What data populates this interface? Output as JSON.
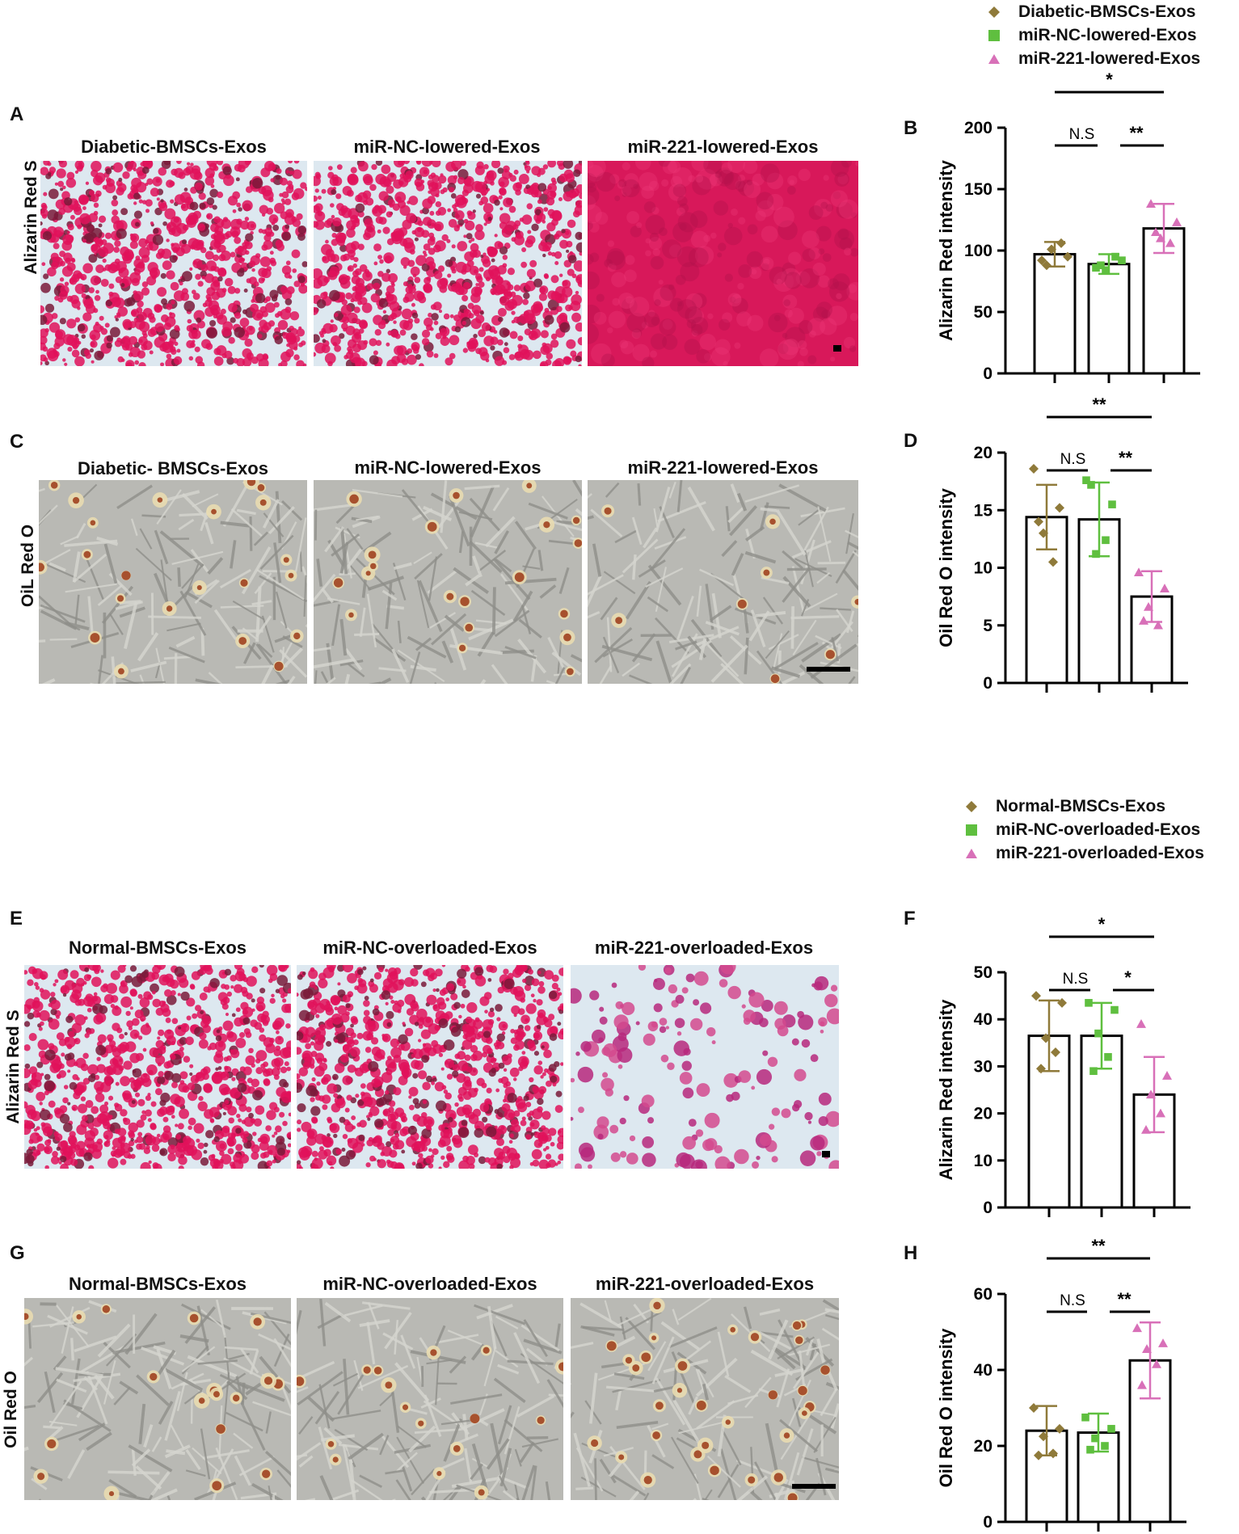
{
  "colors": {
    "diabetic": "#8f7a3a",
    "nc": "#5fbf3f",
    "mir221": "#d870b8",
    "alizarin": "#e0125a",
    "oil_bg": "#b9b9b4"
  },
  "legend_top": [
    {
      "label": "Diabetic-BMSCs-Exos",
      "marker": "diamond",
      "color": "#8f7a3a"
    },
    {
      "label": "miR-NC-lowered-Exos",
      "marker": "square",
      "color": "#5fbf3f"
    },
    {
      "label": "miR-221-lowered-Exos",
      "marker": "triangle",
      "color": "#d870b8"
    }
  ],
  "legend_bottom": [
    {
      "label": "Normal-BMSCs-Exos",
      "marker": "diamond",
      "color": "#8f7a3a"
    },
    {
      "label": "miR-NC-overloaded-Exos",
      "marker": "square",
      "color": "#5fbf3f"
    },
    {
      "label": "miR-221-overloaded-Exos",
      "marker": "triangle",
      "color": "#d870b8"
    }
  ],
  "panels": {
    "A": {
      "letter": "A",
      "row_label": "Alizarin Red S",
      "titles": [
        "Diabetic-BMSCs-Exos",
        "miR-NC-lowered-Exos",
        "miR-221-lowered-Exos"
      ]
    },
    "C": {
      "letter": "C",
      "row_label": "OiL Red O",
      "titles": [
        "Diabetic- BMSCs-Exos",
        "miR-NC-lowered-Exos",
        "miR-221-lowered-Exos"
      ]
    },
    "E": {
      "letter": "E",
      "row_label": "Alizarin Red S",
      "titles": [
        "Normal-BMSCs-Exos",
        "miR-NC-overloaded-Exos",
        "miR-221-overloaded-Exos"
      ]
    },
    "G": {
      "letter": "G",
      "row_label": "Oil Red O",
      "titles": [
        "Normal-BMSCs-Exos",
        "miR-NC-overloaded-Exos",
        "miR-221-overloaded-Exos"
      ]
    }
  },
  "chart_data": [
    {
      "id": "B",
      "letter": "B",
      "type": "bar",
      "ylabel": "Alizarin Red intensity",
      "yticks": [
        "0",
        "50",
        "100",
        "150",
        "200"
      ],
      "ylim": [
        0,
        200
      ],
      "values": [
        97,
        89,
        118
      ],
      "errors": [
        10,
        8,
        20
      ],
      "points": [
        [
          92,
          95,
          101,
          106,
          88
        ],
        [
          86,
          92,
          84,
          95,
          88
        ],
        [
          138,
          123,
          110,
          106,
          115
        ]
      ],
      "markers": [
        "diamond",
        "square",
        "triangle"
      ],
      "sig": [
        {
          "from": 0,
          "to": 1,
          "label": "N.S",
          "level": 0
        },
        {
          "from": 1,
          "to": 2,
          "label": "**",
          "level": 0
        },
        {
          "from": 0,
          "to": 2,
          "label": "*",
          "level": 1
        }
      ]
    },
    {
      "id": "D",
      "letter": "D",
      "type": "bar",
      "ylabel": "Oil Red O intensity",
      "yticks": [
        "0",
        "5",
        "10",
        "15",
        "20"
      ],
      "ylim": [
        0,
        20
      ],
      "values": [
        14.4,
        14.2,
        7.5
      ],
      "errors": [
        2.8,
        3.2,
        2.2
      ],
      "points": [
        [
          18.6,
          15.2,
          13.0,
          10.5,
          14.0
        ],
        [
          17.6,
          15.5,
          11.2,
          12.4,
          17.2
        ],
        [
          9.6,
          8.2,
          6.6,
          5.0,
          5.4
        ]
      ],
      "markers": [
        "diamond",
        "square",
        "triangle"
      ],
      "sig": [
        {
          "from": 0,
          "to": 1,
          "label": "N.S",
          "level": 0
        },
        {
          "from": 1,
          "to": 2,
          "label": "**",
          "level": 0
        },
        {
          "from": 0,
          "to": 2,
          "label": "**",
          "level": 1
        }
      ]
    },
    {
      "id": "F",
      "letter": "F",
      "type": "bar",
      "ylabel": "Alizarin Red intensity",
      "yticks": [
        "0",
        "10",
        "20",
        "30",
        "40",
        "50"
      ],
      "ylim": [
        0,
        50
      ],
      "values": [
        36.5,
        36.5,
        24
      ],
      "errors": [
        7.5,
        7.0,
        8.0
      ],
      "points": [
        [
          45,
          43.5,
          36,
          33,
          29.5
        ],
        [
          43.5,
          42,
          37,
          32,
          29
        ],
        [
          39,
          28,
          24,
          20,
          16.5
        ]
      ],
      "markers": [
        "diamond",
        "square",
        "triangle"
      ],
      "sig": [
        {
          "from": 0,
          "to": 1,
          "label": "N.S",
          "level": 0
        },
        {
          "from": 1,
          "to": 2,
          "label": "*",
          "level": 0
        },
        {
          "from": 0,
          "to": 2,
          "label": "*",
          "level": 1
        }
      ]
    },
    {
      "id": "H",
      "letter": "H",
      "type": "bar",
      "ylabel": "Oil Red O intensity",
      "yticks": [
        "0",
        "20",
        "40",
        "60"
      ],
      "ylim": [
        0,
        60
      ],
      "values": [
        24,
        23.5,
        42.5
      ],
      "errors": [
        6.5,
        5,
        10
      ],
      "points": [
        [
          30,
          24.5,
          22.5,
          18,
          17.5
        ],
        [
          27.5,
          24.5,
          22,
          20,
          19
        ],
        [
          51,
          47,
          45.5,
          41.5,
          36
        ]
      ],
      "markers": [
        "diamond",
        "square",
        "triangle"
      ],
      "sig": [
        {
          "from": 0,
          "to": 1,
          "label": "N.S",
          "level": 0
        },
        {
          "from": 1,
          "to": 2,
          "label": "**",
          "level": 0
        },
        {
          "from": 0,
          "to": 2,
          "label": "**",
          "level": 1
        }
      ]
    }
  ]
}
